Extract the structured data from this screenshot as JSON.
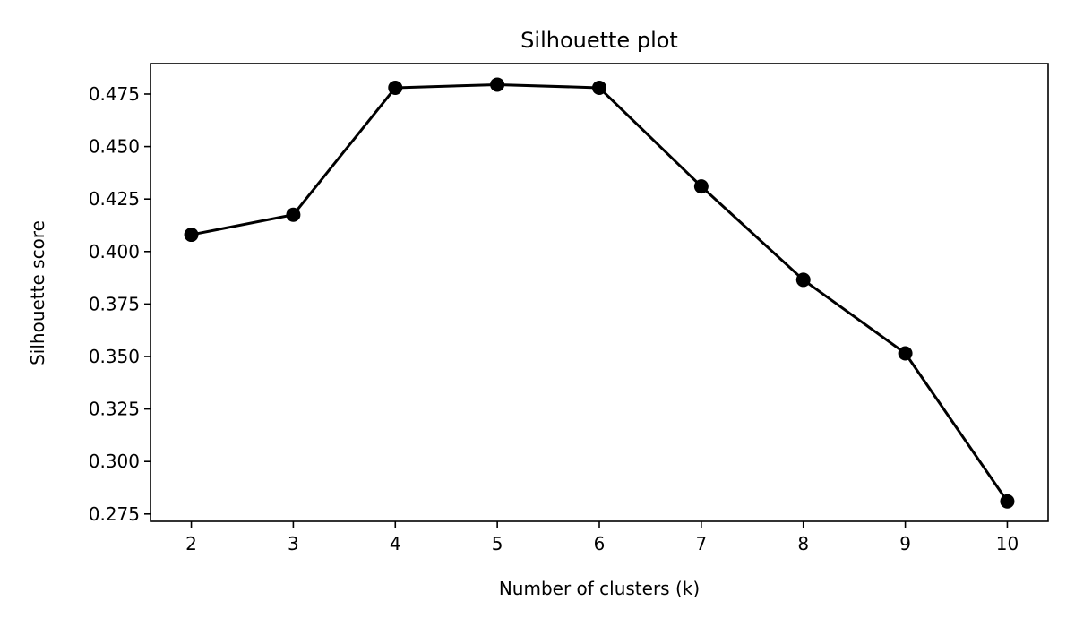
{
  "chart_data": {
    "type": "line",
    "title": "Silhouette plot",
    "xlabel": "Number of clusters (k)",
    "ylabel": "Silhouette score",
    "x": [
      2,
      3,
      4,
      5,
      6,
      7,
      8,
      9,
      10
    ],
    "series": [
      {
        "values": [
          0.408,
          0.4175,
          0.478,
          0.4795,
          0.478,
          0.431,
          0.3865,
          0.3515,
          0.281
        ],
        "color": "#000000",
        "marker": "circle"
      }
    ],
    "xticks": [
      "2",
      "3",
      "4",
      "5",
      "6",
      "7",
      "8",
      "9",
      "10"
    ],
    "yticks": [
      "0.275",
      "0.300",
      "0.325",
      "0.350",
      "0.375",
      "0.400",
      "0.425",
      "0.450",
      "0.475"
    ],
    "xlim": [
      1.6,
      10.4
    ],
    "ylim": [
      0.2715,
      0.4895
    ],
    "grid": false,
    "legend": "none"
  }
}
